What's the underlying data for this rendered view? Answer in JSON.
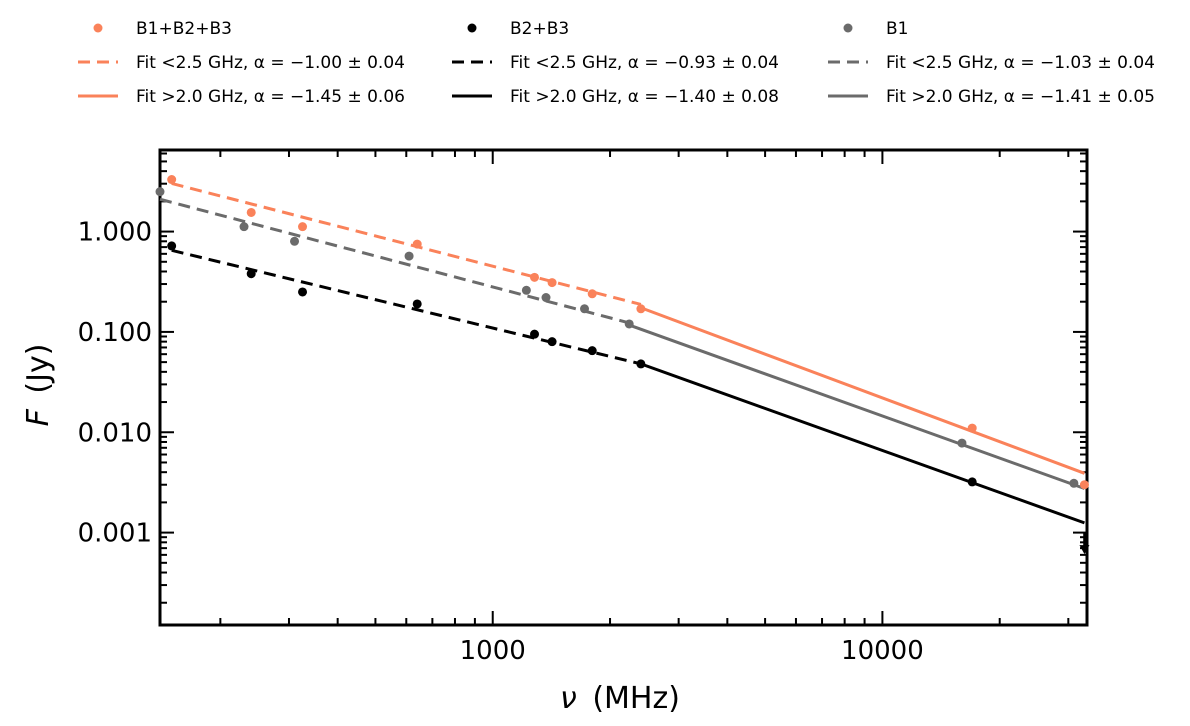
{
  "chart_data": {
    "type": "scatter",
    "title": "",
    "xlabel": "(MHz)",
    "xlabel_symbol": "ν",
    "ylabel": "(Jy)",
    "ylabel_symbol": "F",
    "xscale": "log",
    "yscale": "log",
    "xlim": [
      140,
      33500
    ],
    "ylim": [
      0.00012,
      6.5
    ],
    "x_ticks": [
      1000,
      10000
    ],
    "x_tick_labels": [
      "1000",
      "10000"
    ],
    "y_ticks": [
      0.001,
      0.01,
      0.1,
      1
    ],
    "y_tick_labels": [
      "0.001",
      "0.010",
      "0.100",
      "1.000"
    ],
    "grid": false,
    "legend_position": "top",
    "colors": {
      "orange": "#fa825a",
      "black": "#000000",
      "gray": "#6b6b6b"
    },
    "series": [
      {
        "name": "B1+B2+B3",
        "color": "#fa825a",
        "x": [
          150,
          240,
          325,
          640,
          1280,
          1420,
          1800,
          2400,
          17000,
          33000
        ],
        "y": [
          3.3,
          1.55,
          1.12,
          0.75,
          0.35,
          0.31,
          0.24,
          0.17,
          0.011,
          0.003
        ]
      },
      {
        "name": "B2+B3",
        "color": "#000000",
        "x": [
          150,
          240,
          325,
          640,
          1280,
          1420,
          1800,
          2400,
          17000
        ],
        "y": [
          0.72,
          0.38,
          0.25,
          0.19,
          0.095,
          0.08,
          0.065,
          0.048,
          0.0032
        ],
        "upper_limits": [
          {
            "x": 33000,
            "y": 0.00075
          }
        ]
      },
      {
        "name": "B1",
        "color": "#6b6b6b",
        "x": [
          140,
          230,
          310,
          610,
          1220,
          1370,
          1720,
          2240,
          16000,
          31000
        ],
        "y": [
          2.5,
          1.12,
          0.8,
          0.57,
          0.26,
          0.22,
          0.17,
          0.12,
          0.0078,
          0.0031
        ]
      }
    ],
    "fits": [
      {
        "name": "Fit <2.5 GHz",
        "alpha": "α = −1.00 ± 0.04",
        "color": "#fa825a",
        "style": "dashed",
        "x": [
          150,
          2400
        ],
        "y": [
          3.02,
          0.188
        ]
      },
      {
        "name": "Fit >2.0 GHz",
        "alpha": "α = −1.45 ± 0.06",
        "color": "#fa825a",
        "style": "solid",
        "x": [
          2400,
          33000
        ],
        "y": [
          0.174,
          0.0039
        ]
      },
      {
        "name": "Fit <2.5 GHz",
        "alpha": "α = −0.93 ± 0.04",
        "color": "#000000",
        "style": "dashed",
        "x": [
          150,
          2400
        ],
        "y": [
          0.65,
          0.048
        ]
      },
      {
        "name": "Fit >2.0 GHz",
        "alpha": "α = −1.40 ± 0.08",
        "color": "#000000",
        "style": "solid",
        "x": [
          2400,
          33000
        ],
        "y": [
          0.048,
          0.00125
        ]
      },
      {
        "name": "Fit <2.5 GHz",
        "alpha": "α = −1.03 ± 0.04",
        "color": "#6b6b6b",
        "style": "dashed",
        "x": [
          140,
          2240
        ],
        "y": [
          2.1,
          0.123
        ]
      },
      {
        "name": "Fit >2.0 GHz",
        "alpha": "α = −1.41 ± 0.05",
        "color": "#6b6b6b",
        "style": "solid",
        "x": [
          2240,
          33000
        ],
        "y": [
          0.117,
          0.00275
        ]
      }
    ],
    "legend": [
      {
        "label": "B1+B2+B3",
        "marker": "dot",
        "color": "#fa825a"
      },
      {
        "label": "B2+B3",
        "marker": "dot",
        "color": "#000000"
      },
      {
        "label": "B1",
        "marker": "dot",
        "color": "#6b6b6b"
      },
      {
        "label": "Fit  <2.5 GHz,  α = −1.00 ± 0.04",
        "marker": "dashed",
        "color": "#fa825a"
      },
      {
        "label": "Fit  <2.5 GHz,  α = −0.93 ± 0.04",
        "marker": "dashed",
        "color": "#000000"
      },
      {
        "label": "Fit  <2.5 GHz,  α = −1.03 ± 0.04",
        "marker": "dashed",
        "color": "#6b6b6b"
      },
      {
        "label": "Fit  >2.0 GHz,  α = −1.45 ± 0.06",
        "marker": "solid",
        "color": "#fa825a"
      },
      {
        "label": "Fit  >2.0 GHz,  α = −1.40 ± 0.08",
        "marker": "solid",
        "color": "#000000"
      },
      {
        "label": "Fit  >2.0 GHz,  α = −1.41 ± 0.05",
        "marker": "solid",
        "color": "#6b6b6b"
      }
    ]
  }
}
